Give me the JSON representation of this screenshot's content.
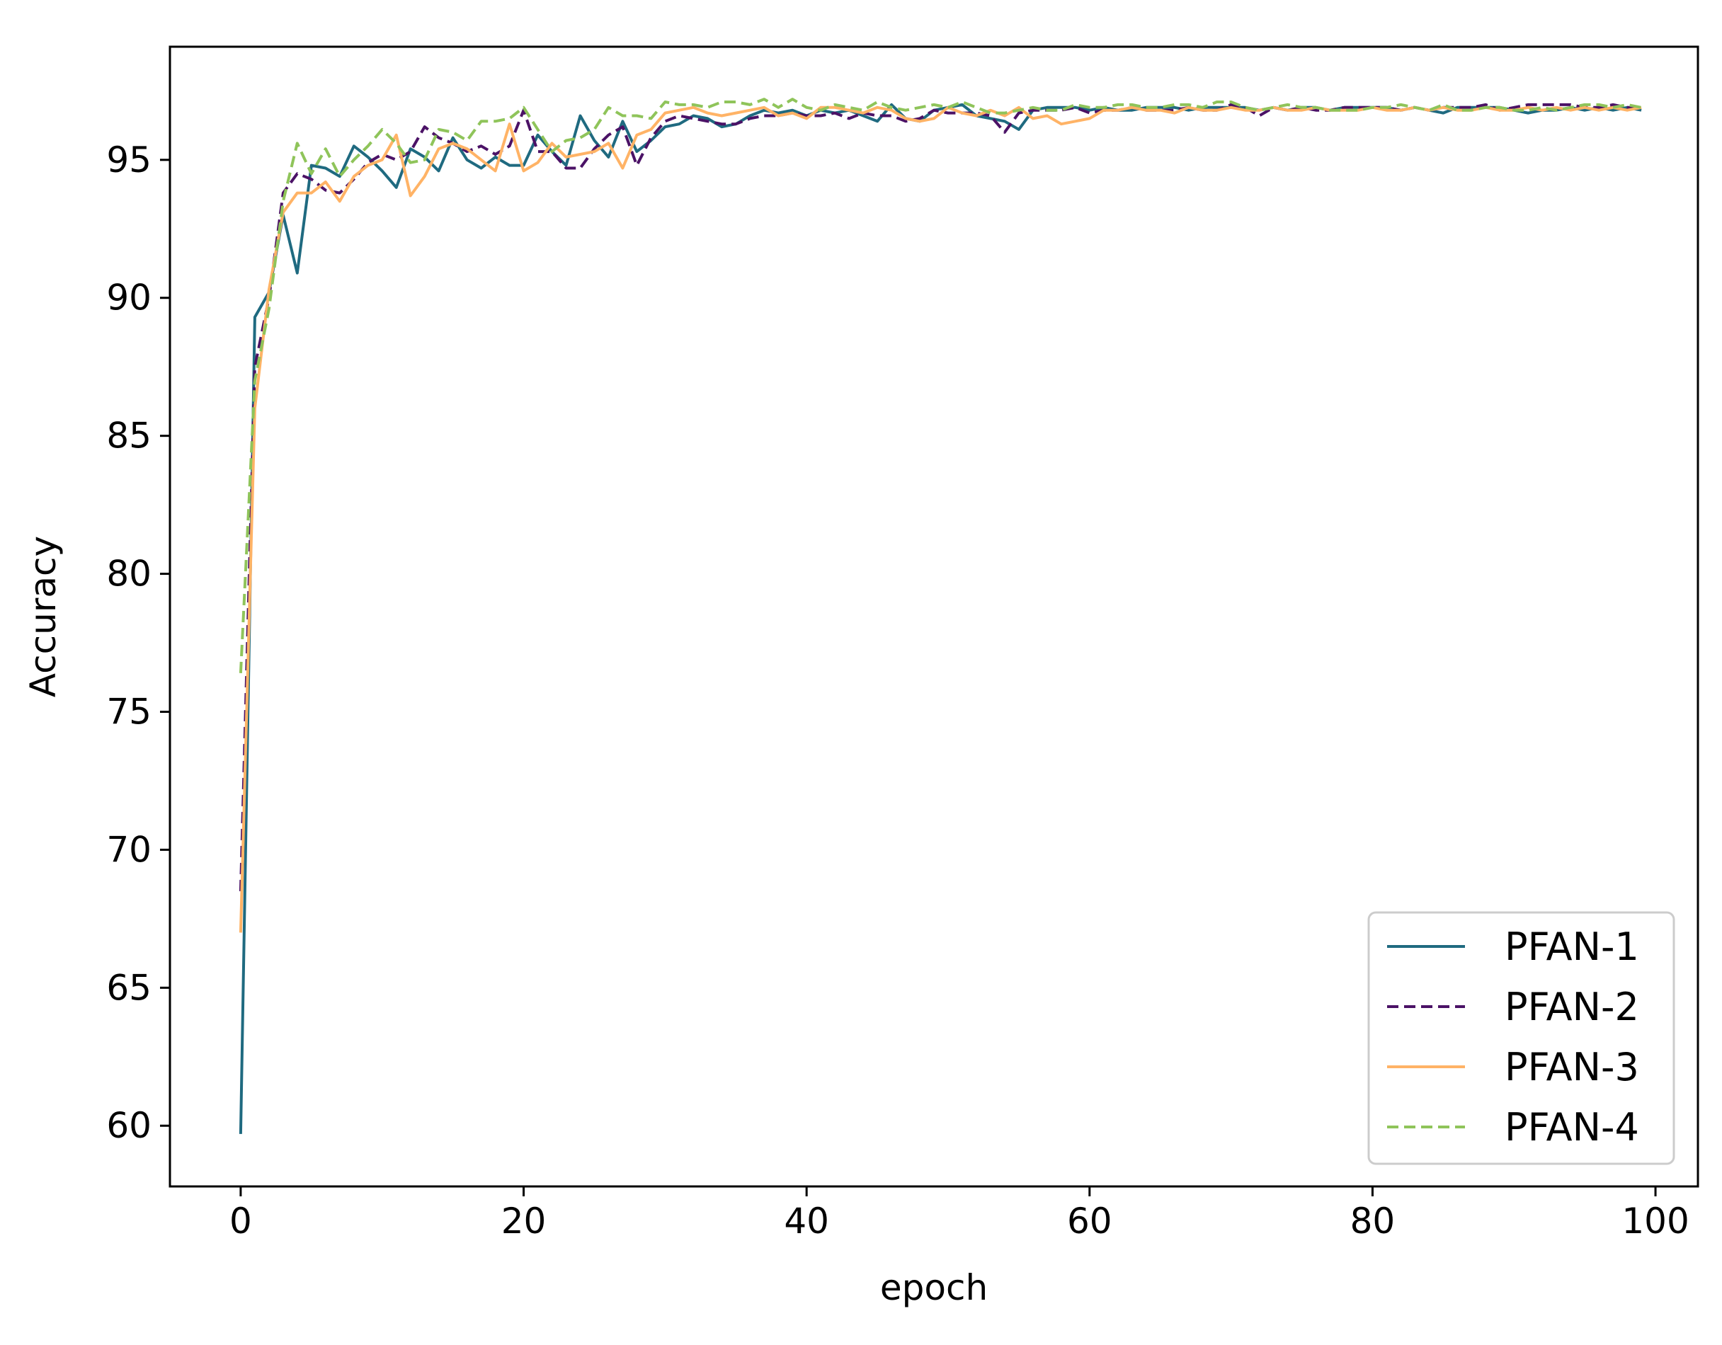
{
  "chart_data": {
    "type": "line",
    "xlabel": "epoch",
    "ylabel": "Accuracy",
    "xlim": [
      -5,
      103
    ],
    "ylim": [
      57.8,
      99.1
    ],
    "xticks": [
      0,
      20,
      40,
      60,
      80,
      100
    ],
    "yticks": [
      60,
      65,
      70,
      75,
      80,
      85,
      90,
      95
    ],
    "grid": false,
    "legend_position": "lower-right",
    "x": [
      0,
      1,
      2,
      3,
      4,
      5,
      6,
      7,
      8,
      9,
      10,
      11,
      12,
      13,
      14,
      15,
      16,
      17,
      18,
      19,
      20,
      21,
      22,
      23,
      24,
      25,
      26,
      27,
      28,
      29,
      30,
      31,
      32,
      33,
      34,
      35,
      36,
      37,
      38,
      39,
      40,
      41,
      42,
      43,
      44,
      45,
      46,
      47,
      48,
      49,
      50,
      51,
      52,
      53,
      54,
      55,
      56,
      57,
      58,
      59,
      60,
      61,
      62,
      63,
      64,
      65,
      66,
      67,
      68,
      69,
      70,
      71,
      72,
      73,
      74,
      75,
      76,
      77,
      78,
      79,
      80,
      81,
      82,
      83,
      84,
      85,
      86,
      87,
      88,
      89,
      90,
      91,
      92,
      93,
      94,
      95,
      96,
      97,
      98,
      99
    ],
    "series": [
      {
        "name": "PFAN-1",
        "color": "#1f6a80",
        "dash": "solid",
        "values": [
          59.7,
          89.3,
          90.2,
          93.0,
          90.9,
          94.8,
          94.7,
          94.4,
          95.5,
          95.1,
          94.6,
          94.0,
          95.4,
          95.1,
          94.6,
          95.8,
          95.0,
          94.7,
          95.1,
          94.8,
          94.8,
          95.9,
          95.3,
          94.8,
          96.6,
          95.7,
          95.1,
          96.4,
          95.3,
          95.7,
          96.2,
          96.3,
          96.6,
          96.5,
          96.2,
          96.3,
          96.6,
          96.8,
          96.7,
          96.8,
          96.6,
          96.8,
          96.7,
          96.8,
          96.6,
          96.4,
          97.0,
          96.5,
          96.4,
          96.8,
          96.9,
          97.0,
          96.6,
          96.5,
          96.4,
          96.1,
          96.8,
          96.9,
          96.9,
          96.9,
          96.8,
          96.9,
          96.8,
          96.8,
          96.9,
          96.9,
          96.9,
          96.8,
          96.9,
          96.9,
          96.9,
          96.9,
          96.8,
          96.9,
          96.8,
          96.9,
          96.9,
          96.8,
          96.9,
          96.9,
          96.9,
          96.9,
          96.8,
          96.9,
          96.8,
          96.7,
          96.9,
          96.9,
          96.9,
          96.9,
          96.8,
          96.7,
          96.8,
          96.8,
          96.9,
          96.8,
          96.9,
          96.8,
          96.9,
          96.8
        ]
      },
      {
        "name": "PFAN-2",
        "color": "#4b1266",
        "dash": "dashed",
        "values": [
          68.5,
          87.5,
          90.0,
          93.8,
          94.5,
          94.3,
          93.9,
          93.8,
          94.3,
          94.9,
          95.2,
          95.0,
          95.3,
          96.2,
          95.8,
          95.6,
          95.3,
          95.5,
          95.2,
          95.5,
          96.8,
          95.3,
          95.3,
          94.7,
          94.7,
          95.4,
          95.9,
          96.2,
          94.8,
          95.8,
          96.4,
          96.6,
          96.5,
          96.4,
          96.3,
          96.3,
          96.5,
          96.6,
          96.6,
          96.7,
          96.6,
          96.6,
          96.7,
          96.5,
          96.7,
          96.6,
          96.6,
          96.4,
          96.5,
          96.8,
          96.7,
          96.7,
          96.7,
          96.6,
          96.0,
          96.7,
          96.8,
          96.8,
          96.8,
          96.9,
          96.7,
          96.8,
          96.8,
          96.9,
          96.8,
          96.8,
          96.8,
          96.9,
          96.8,
          96.8,
          97.0,
          96.9,
          96.6,
          96.9,
          96.8,
          96.9,
          96.8,
          96.8,
          96.9,
          96.9,
          96.9,
          96.9,
          96.8,
          96.9,
          96.8,
          96.9,
          96.9,
          96.9,
          97.0,
          96.8,
          96.9,
          97.0,
          97.0,
          97.0,
          97.0,
          96.9,
          96.9,
          97.0,
          96.9,
          96.9
        ]
      },
      {
        "name": "PFAN-3",
        "color": "#ffb366",
        "dash": "solid",
        "values": [
          67.0,
          86.0,
          90.3,
          93.1,
          93.8,
          93.8,
          94.2,
          93.5,
          94.4,
          94.8,
          95.0,
          95.9,
          93.7,
          94.4,
          95.4,
          95.6,
          95.4,
          95.0,
          94.6,
          96.3,
          94.6,
          94.9,
          95.6,
          95.1,
          95.2,
          95.3,
          95.6,
          94.7,
          95.9,
          96.1,
          96.7,
          96.8,
          96.9,
          96.7,
          96.6,
          96.7,
          96.8,
          96.9,
          96.6,
          96.7,
          96.5,
          96.9,
          96.9,
          96.8,
          96.7,
          96.9,
          96.8,
          96.5,
          96.4,
          96.5,
          96.9,
          96.7,
          96.6,
          96.8,
          96.6,
          96.9,
          96.5,
          96.6,
          96.3,
          96.4,
          96.5,
          96.8,
          96.8,
          96.9,
          96.8,
          96.8,
          96.7,
          96.9,
          96.8,
          96.8,
          96.9,
          96.8,
          96.8,
          96.9,
          96.8,
          96.8,
          96.9,
          96.8,
          96.8,
          96.8,
          96.9,
          96.8,
          96.8,
          96.9,
          96.8,
          96.9,
          96.8,
          96.8,
          96.9,
          96.8,
          96.8,
          96.9,
          96.8,
          96.9,
          96.8,
          96.9,
          96.8,
          96.9,
          96.8,
          96.9
        ]
      },
      {
        "name": "PFAN-4",
        "color": "#8fc45a",
        "dash": "dashed",
        "values": [
          76.4,
          87.0,
          89.6,
          93.5,
          95.6,
          94.5,
          95.4,
          94.4,
          95.0,
          95.5,
          96.1,
          95.6,
          94.9,
          95.0,
          96.1,
          96.0,
          95.7,
          96.4,
          96.4,
          96.5,
          96.9,
          96.1,
          95.3,
          95.7,
          95.8,
          96.1,
          96.9,
          96.6,
          96.6,
          96.5,
          97.1,
          97.0,
          97.0,
          96.9,
          97.1,
          97.1,
          97.0,
          97.2,
          96.9,
          97.2,
          96.9,
          96.8,
          97.0,
          96.9,
          96.8,
          97.1,
          96.9,
          96.8,
          96.9,
          97.0,
          96.9,
          97.1,
          96.9,
          96.7,
          96.7,
          96.8,
          96.9,
          96.8,
          96.8,
          97.0,
          96.9,
          96.9,
          97.0,
          97.0,
          96.9,
          96.9,
          97.0,
          97.0,
          96.9,
          97.1,
          97.1,
          96.9,
          96.8,
          96.9,
          97.0,
          96.9,
          96.9,
          96.8,
          96.8,
          96.8,
          96.9,
          96.9,
          97.0,
          96.9,
          96.8,
          97.0,
          96.8,
          96.8,
          96.9,
          96.9,
          96.8,
          96.8,
          96.9,
          96.8,
          96.9,
          97.0,
          97.0,
          96.9,
          97.0,
          96.9
        ]
      }
    ]
  }
}
